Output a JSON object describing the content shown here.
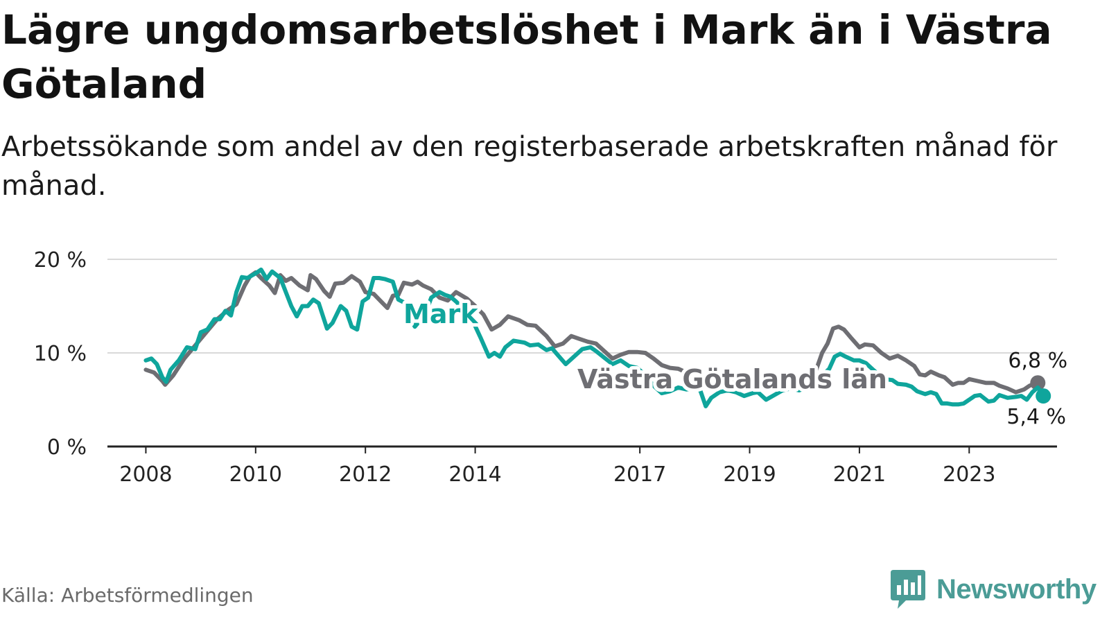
{
  "header": {
    "title": "Lägre ungdomsarbetslöshet i Mark än i Västra Götaland",
    "subtitle": "Arbetssökande som andel av den registerbaserade arbetskraften månad för månad."
  },
  "footer": {
    "source": "Källa: Arbetsförmedlingen",
    "brand": "Newsworthy"
  },
  "colors": {
    "mark": "#0fa59c",
    "vg": "#6e6e73",
    "grid": "#d9d9d9",
    "axis": "#222222",
    "brand": "#4b9c96"
  },
  "icons": {
    "brand": "bar-chart-speech-icon"
  },
  "chart_data": {
    "type": "line",
    "title": "Lägre ungdomsarbetslöshet i Mark än i Västra Götaland",
    "xlabel": "",
    "ylabel": "",
    "x_range": [
      2007.3,
      2024.6
    ],
    "ylim": [
      0,
      20
    ],
    "y_ticks": [
      {
        "value": 0,
        "label": "0 %"
      },
      {
        "value": 10,
        "label": "10 %"
      },
      {
        "value": 20,
        "label": "20 %"
      }
    ],
    "x_ticks": [
      {
        "value": 2008,
        "label": "2008"
      },
      {
        "value": 2010,
        "label": "2010"
      },
      {
        "value": 2012,
        "label": "2012"
      },
      {
        "value": 2014,
        "label": "2014"
      },
      {
        "value": 2017,
        "label": "2017"
      },
      {
        "value": 2019,
        "label": "2019"
      },
      {
        "value": 2021,
        "label": "2021"
      },
      {
        "value": 2023,
        "label": "2023"
      }
    ],
    "grid": true,
    "series": [
      {
        "name": "Västra Götalands län",
        "color": "#6e6e73",
        "end_label": "6,8 %",
        "points": [
          [
            2008.0,
            8.2
          ],
          [
            2008.15,
            7.9
          ],
          [
            2008.3,
            7.0
          ],
          [
            2008.35,
            6.6
          ],
          [
            2008.5,
            7.6
          ],
          [
            2008.7,
            9.4
          ],
          [
            2008.9,
            10.8
          ],
          [
            2009.1,
            12.2
          ],
          [
            2009.3,
            13.6
          ],
          [
            2009.5,
            14.6
          ],
          [
            2009.65,
            15.2
          ],
          [
            2009.8,
            17.2
          ],
          [
            2009.9,
            18.2
          ],
          [
            2010.0,
            18.6
          ],
          [
            2010.1,
            18.0
          ],
          [
            2010.25,
            17.2
          ],
          [
            2010.35,
            16.4
          ],
          [
            2010.45,
            18.3
          ],
          [
            2010.55,
            17.7
          ],
          [
            2010.65,
            18.0
          ],
          [
            2010.8,
            17.2
          ],
          [
            2010.95,
            16.7
          ],
          [
            2011.0,
            18.3
          ],
          [
            2011.1,
            17.9
          ],
          [
            2011.25,
            16.6
          ],
          [
            2011.35,
            16.0
          ],
          [
            2011.45,
            17.4
          ],
          [
            2011.6,
            17.5
          ],
          [
            2011.75,
            18.2
          ],
          [
            2011.9,
            17.6
          ],
          [
            2012.0,
            16.5
          ],
          [
            2012.15,
            16.3
          ],
          [
            2012.3,
            15.4
          ],
          [
            2012.4,
            14.8
          ],
          [
            2012.5,
            16.1
          ],
          [
            2012.6,
            16.2
          ],
          [
            2012.7,
            17.5
          ],
          [
            2012.85,
            17.3
          ],
          [
            2012.95,
            17.6
          ],
          [
            2013.05,
            17.2
          ],
          [
            2013.2,
            16.8
          ],
          [
            2013.35,
            15.9
          ],
          [
            2013.5,
            15.6
          ],
          [
            2013.65,
            16.5
          ],
          [
            2013.85,
            15.8
          ],
          [
            2014.0,
            15.0
          ],
          [
            2014.15,
            14.1
          ],
          [
            2014.3,
            12.5
          ],
          [
            2014.45,
            13.0
          ],
          [
            2014.6,
            13.9
          ],
          [
            2014.8,
            13.5
          ],
          [
            2014.95,
            13.0
          ],
          [
            2015.1,
            12.9
          ],
          [
            2015.3,
            11.8
          ],
          [
            2015.45,
            10.7
          ],
          [
            2015.6,
            11.0
          ],
          [
            2015.75,
            11.8
          ],
          [
            2015.9,
            11.5
          ],
          [
            2016.05,
            11.2
          ],
          [
            2016.2,
            11.0
          ],
          [
            2016.35,
            10.2
          ],
          [
            2016.5,
            9.4
          ],
          [
            2016.65,
            9.8
          ],
          [
            2016.8,
            10.1
          ],
          [
            2016.95,
            10.1
          ],
          [
            2017.1,
            10.0
          ],
          [
            2017.25,
            9.4
          ],
          [
            2017.4,
            8.7
          ],
          [
            2017.55,
            8.4
          ],
          [
            2017.7,
            8.3
          ],
          [
            2017.85,
            7.9
          ],
          [
            2018.0,
            7.6
          ],
          [
            2018.15,
            7.4
          ],
          [
            2018.3,
            6.8
          ],
          [
            2018.45,
            7.0
          ],
          [
            2018.6,
            7.2
          ],
          [
            2018.8,
            7.1
          ],
          [
            2018.95,
            6.9
          ],
          [
            2019.1,
            7.0
          ],
          [
            2019.3,
            6.5
          ],
          [
            2019.45,
            6.5
          ],
          [
            2019.6,
            6.4
          ],
          [
            2019.8,
            6.2
          ],
          [
            2019.95,
            6.5
          ],
          [
            2020.1,
            7.0
          ],
          [
            2020.2,
            8.0
          ],
          [
            2020.32,
            10.0
          ],
          [
            2020.42,
            11.0
          ],
          [
            2020.52,
            12.6
          ],
          [
            2020.62,
            12.8
          ],
          [
            2020.72,
            12.5
          ],
          [
            2020.85,
            11.6
          ],
          [
            2021.0,
            10.6
          ],
          [
            2021.1,
            10.9
          ],
          [
            2021.25,
            10.8
          ],
          [
            2021.4,
            10.0
          ],
          [
            2021.55,
            9.4
          ],
          [
            2021.7,
            9.7
          ],
          [
            2021.85,
            9.2
          ],
          [
            2022.0,
            8.6
          ],
          [
            2022.1,
            7.7
          ],
          [
            2022.2,
            7.6
          ],
          [
            2022.3,
            8.0
          ],
          [
            2022.45,
            7.6
          ],
          [
            2022.55,
            7.4
          ],
          [
            2022.7,
            6.6
          ],
          [
            2022.8,
            6.8
          ],
          [
            2022.9,
            6.8
          ],
          [
            2023.0,
            7.2
          ],
          [
            2023.15,
            7.0
          ],
          [
            2023.3,
            6.8
          ],
          [
            2023.45,
            6.8
          ],
          [
            2023.55,
            6.5
          ],
          [
            2023.7,
            6.2
          ],
          [
            2023.85,
            5.8
          ],
          [
            2024.0,
            6.1
          ],
          [
            2024.1,
            6.5
          ],
          [
            2024.25,
            6.8
          ]
        ]
      },
      {
        "name": "Mark",
        "color": "#0fa59c",
        "end_label": "5,4 %",
        "points": [
          [
            2008.0,
            9.2
          ],
          [
            2008.1,
            9.4
          ],
          [
            2008.2,
            8.8
          ],
          [
            2008.3,
            7.4
          ],
          [
            2008.37,
            6.9
          ],
          [
            2008.45,
            8.2
          ],
          [
            2008.6,
            9.2
          ],
          [
            2008.75,
            10.6
          ],
          [
            2008.9,
            10.4
          ],
          [
            2009.0,
            12.2
          ],
          [
            2009.12,
            12.5
          ],
          [
            2009.25,
            13.6
          ],
          [
            2009.35,
            13.6
          ],
          [
            2009.45,
            14.5
          ],
          [
            2009.55,
            14.0
          ],
          [
            2009.65,
            16.5
          ],
          [
            2009.75,
            18.1
          ],
          [
            2009.85,
            18.0
          ],
          [
            2010.0,
            18.5
          ],
          [
            2010.1,
            18.9
          ],
          [
            2010.2,
            17.9
          ],
          [
            2010.3,
            18.7
          ],
          [
            2010.45,
            18.0
          ],
          [
            2010.55,
            16.5
          ],
          [
            2010.65,
            15.0
          ],
          [
            2010.75,
            13.9
          ],
          [
            2010.85,
            15.0
          ],
          [
            2010.95,
            15.0
          ],
          [
            2011.05,
            15.7
          ],
          [
            2011.15,
            15.3
          ],
          [
            2011.3,
            12.6
          ],
          [
            2011.4,
            13.2
          ],
          [
            2011.55,
            15.0
          ],
          [
            2011.65,
            14.5
          ],
          [
            2011.75,
            12.8
          ],
          [
            2011.85,
            12.5
          ],
          [
            2011.95,
            15.5
          ],
          [
            2012.05,
            15.9
          ],
          [
            2012.15,
            18.0
          ],
          [
            2012.25,
            18.0
          ],
          [
            2012.35,
            17.9
          ],
          [
            2012.5,
            17.6
          ],
          [
            2012.6,
            15.7
          ],
          [
            2012.7,
            15.4
          ],
          [
            2012.8,
            14.0
          ],
          [
            2012.9,
            12.8
          ],
          [
            2013.0,
            13.5
          ],
          [
            2013.1,
            14.3
          ],
          [
            2013.2,
            15.9
          ],
          [
            2013.35,
            16.5
          ],
          [
            2013.45,
            16.2
          ],
          [
            2013.55,
            16.0
          ],
          [
            2013.65,
            15.5
          ],
          [
            2013.8,
            14.6
          ],
          [
            2013.95,
            13.5
          ],
          [
            2014.1,
            11.6
          ],
          [
            2014.25,
            9.6
          ],
          [
            2014.35,
            10.0
          ],
          [
            2014.45,
            9.6
          ],
          [
            2014.55,
            10.6
          ],
          [
            2014.7,
            11.3
          ],
          [
            2014.8,
            11.2
          ],
          [
            2014.9,
            11.1
          ],
          [
            2015.0,
            10.8
          ],
          [
            2015.15,
            10.9
          ],
          [
            2015.3,
            10.3
          ],
          [
            2015.4,
            10.5
          ],
          [
            2015.5,
            9.8
          ],
          [
            2015.65,
            8.8
          ],
          [
            2015.8,
            9.6
          ],
          [
            2015.95,
            10.4
          ],
          [
            2016.1,
            10.6
          ],
          [
            2016.2,
            10.2
          ],
          [
            2016.35,
            9.5
          ],
          [
            2016.5,
            8.8
          ],
          [
            2016.65,
            9.2
          ],
          [
            2016.8,
            8.6
          ],
          [
            2016.95,
            8.4
          ],
          [
            2017.1,
            7.6
          ],
          [
            2017.25,
            6.5
          ],
          [
            2017.4,
            5.7
          ],
          [
            2017.55,
            5.9
          ],
          [
            2017.7,
            6.3
          ],
          [
            2017.85,
            6.1
          ],
          [
            2018.0,
            6.2
          ],
          [
            2018.1,
            6.0
          ],
          [
            2018.2,
            4.3
          ],
          [
            2018.3,
            5.2
          ],
          [
            2018.45,
            5.8
          ],
          [
            2018.6,
            6.0
          ],
          [
            2018.75,
            5.8
          ],
          [
            2018.9,
            5.4
          ],
          [
            2019.05,
            5.7
          ],
          [
            2019.15,
            5.8
          ],
          [
            2019.3,
            5.0
          ],
          [
            2019.45,
            5.5
          ],
          [
            2019.6,
            6.0
          ],
          [
            2019.75,
            6.2
          ],
          [
            2019.9,
            6.0
          ],
          [
            2020.05,
            6.3
          ],
          [
            2020.2,
            6.8
          ],
          [
            2020.32,
            7.6
          ],
          [
            2020.45,
            8.3
          ],
          [
            2020.55,
            9.6
          ],
          [
            2020.65,
            9.9
          ],
          [
            2020.75,
            9.6
          ],
          [
            2020.9,
            9.2
          ],
          [
            2021.0,
            9.2
          ],
          [
            2021.12,
            8.9
          ],
          [
            2021.25,
            8.2
          ],
          [
            2021.35,
            7.7
          ],
          [
            2021.45,
            7.2
          ],
          [
            2021.6,
            7.1
          ],
          [
            2021.7,
            6.7
          ],
          [
            2021.85,
            6.6
          ],
          [
            2021.95,
            6.4
          ],
          [
            2022.05,
            5.9
          ],
          [
            2022.2,
            5.6
          ],
          [
            2022.3,
            5.8
          ],
          [
            2022.4,
            5.6
          ],
          [
            2022.5,
            4.6
          ],
          [
            2022.6,
            4.6
          ],
          [
            2022.7,
            4.5
          ],
          [
            2022.8,
            4.5
          ],
          [
            2022.9,
            4.6
          ],
          [
            2023.0,
            5.0
          ],
          [
            2023.1,
            5.4
          ],
          [
            2023.2,
            5.5
          ],
          [
            2023.35,
            4.8
          ],
          [
            2023.45,
            4.9
          ],
          [
            2023.55,
            5.5
          ],
          [
            2023.7,
            5.2
          ],
          [
            2023.85,
            5.3
          ],
          [
            2023.95,
            5.4
          ],
          [
            2024.05,
            5.0
          ],
          [
            2024.15,
            5.8
          ],
          [
            2024.25,
            6.3
          ],
          [
            2024.35,
            5.4
          ]
        ]
      }
    ]
  }
}
